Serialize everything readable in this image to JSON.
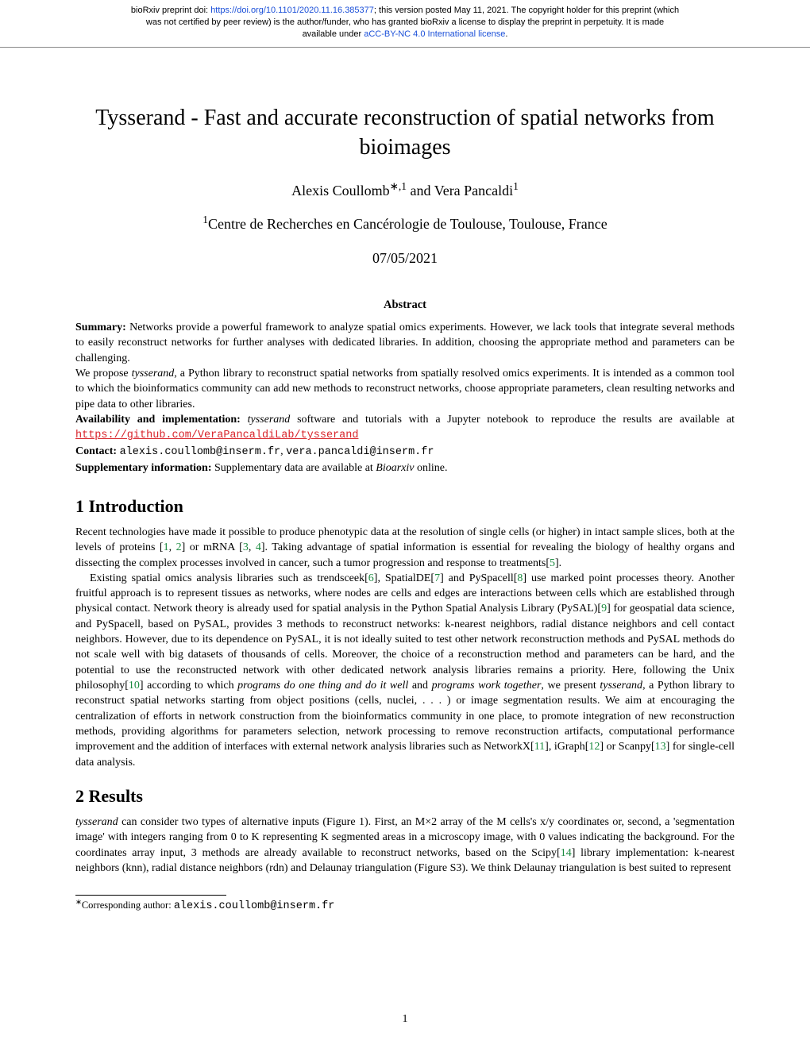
{
  "preprint": {
    "line1_a": "bioRxiv preprint doi: ",
    "doi_url": "https://doi.org/10.1101/2020.11.16.385377",
    "line1_b": "; this version posted May 11, 2021. The copyright holder for this preprint (which",
    "line2": "was not certified by peer review) is the author/funder, who has granted bioRxiv a license to display the preprint in perpetuity. It is made",
    "line3_a": "available under ",
    "license_text": "aCC-BY-NC 4.0 International license",
    "line3_b": "."
  },
  "title": "Tysserand - Fast and accurate reconstruction of spatial networks from bioimages",
  "authors_html": "Alexis Coullomb<sup>∗,1</sup> and Vera Pancaldi<sup>1</sup>",
  "affiliation_html": "<sup>1</sup>Centre de Recherches en Cancérologie de Toulouse, Toulouse, France",
  "date": "07/05/2021",
  "abstract_heading": "Abstract",
  "abstract": {
    "p1": "Summary: Networks provide a powerful framework to analyze spatial omics experiments. However, we lack tools that integrate several methods to easily reconstruct networks for further analyses with dedicated libraries. In addition, choosing the appropriate method and parameters can be challenging.",
    "p2": "We propose tysserand, a Python library to reconstruct spatial networks from spatially resolved omics experiments. It is intended as a common tool to which the bioinformatics community can add new methods to reconstruct networks, choose appropriate parameters, clean resulting networks and pipe data to other libraries.",
    "p3_a": "Availability and implementation: tysserand software and tutorials with a Jupyter notebook to reproduce the results are available at ",
    "p3_link": "https://github.com/VeraPancaldiLab/tysserand",
    "p4_a": "Contact: ",
    "p4_email1": "alexis.coullomb@inserm.fr",
    "p4_sep": ", ",
    "p4_email2": "vera.pancaldi@inserm.fr",
    "p5_a": "Supplementary information: ",
    "p5_b": "Supplementary data are available at ",
    "p5_c": "Bioarxiv",
    "p5_d": " online."
  },
  "sections": {
    "intro_heading": "1    Introduction",
    "intro_p1_a": "Recent technologies have made it possible to produce phenotypic data at the resolution of single cells (or higher) in intact sample slices, both at the levels of proteins [",
    "c1": "1",
    "sep": ", ",
    "c2": "2",
    "intro_p1_b": "] or mRNA [",
    "c3": "3",
    "c4": "4",
    "intro_p1_c": "]. Taking advantage of spatial information is essential for revealing the biology of healthy organs and dissecting the complex processes involved in cancer, such a tumor progression and response to treatments[",
    "c5": "5",
    "intro_p1_d": "].",
    "intro_p2_a": "Existing spatial omics analysis libraries such as trendsceek[",
    "c6": "6",
    "intro_p2_b": "], SpatialDE[",
    "c7": "7",
    "intro_p2_c": "] and PySpacell[",
    "c8": "8",
    "intro_p2_d": "] use marked point processes theory. Another fruitful approach is to represent tissues as networks, where nodes are cells and edges are interactions between cells which are established through physical contact. Network theory is already used for spatial analysis in the Python Spatial Analysis Library (PySAL)[",
    "c9": "9",
    "intro_p2_e": "] for geospatial data science, and PySpacell, based on PySAL, provides 3 methods to reconstruct networks: k-nearest neighbors, radial distance neighbors and cell contact neighbors. However, due to its dependence on PySAL, it is not ideally suited to test other network reconstruction methods and PySAL methods do not scale well with big datasets of thousands of cells. Moreover, the choice of a reconstruction method and parameters can be hard, and the potential to use the reconstructed network with other dedicated network analysis libraries remains a priority. Here, following the Unix philosophy[",
    "c10": "10",
    "intro_p2_f": "] according to which ",
    "intro_p2_g": "programs do one thing and do it well",
    "intro_p2_h": " and ",
    "intro_p2_i": "programs work together",
    "intro_p2_j": ", we present ",
    "intro_p2_k": "tysserand",
    "intro_p2_l": ", a Python library to reconstruct spatial networks starting from object positions (cells, nuclei, . . . ) or image segmentation results. We aim at encouraging the centralization of efforts in network construction from the bioinformatics community in one place, to promote integration of new reconstruction methods, providing algorithms for parameters selection, network processing to remove reconstruction artifacts, computational performance improvement and the addition of interfaces with external network analysis libraries such as NetworkX[",
    "c11": "11",
    "intro_p2_m": "], iGraph[",
    "c12": "12",
    "intro_p2_n": "] or Scanpy[",
    "c13": "13",
    "intro_p2_o": "] for single-cell data analysis.",
    "results_heading": "2    Results",
    "results_p1_a": "tysserand",
    "results_p1_b": " can consider two types of alternative inputs (Figure 1). First, an M×2 array of the M cells's x/y coordinates or, second, a 'segmentation image' with integers ranging from 0 to K representing K segmented areas in a microscopy image, with 0 values indicating the background. For the coordinates array input, 3 methods are already available to reconstruct networks, based on the Scipy[",
    "c14": "14",
    "results_p1_c": "] library implementation: k-nearest neighbors (knn), radial distance neighbors (rdn) and Delaunay triangulation (Figure S3). We think Delaunay triangulation is best suited to represent"
  },
  "footnote": {
    "marker": "∗",
    "text_a": "Corresponding author: ",
    "email": "alexis.coullomb@inserm.fr"
  },
  "page_number": "1"
}
